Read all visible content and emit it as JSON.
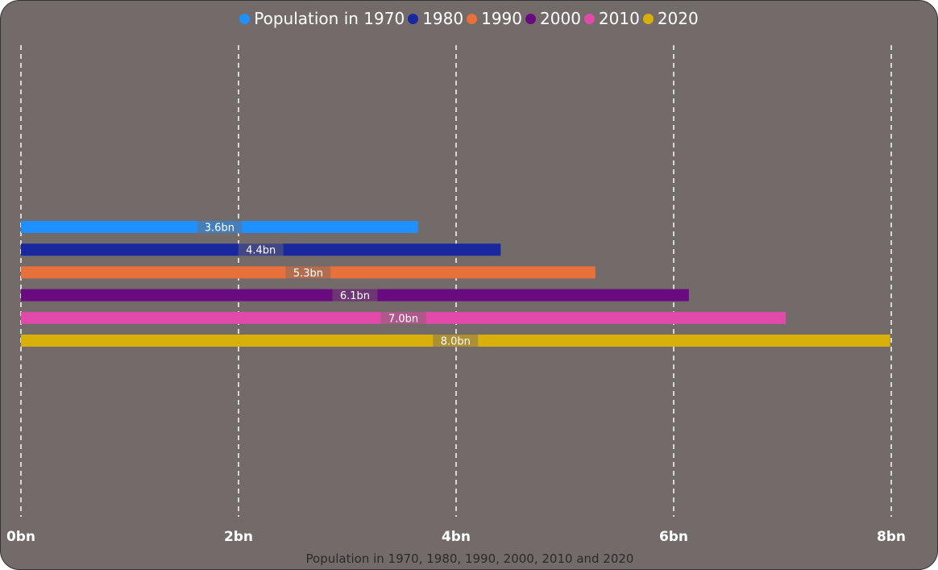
{
  "chart_data": {
    "type": "bar",
    "orientation": "horizontal",
    "categories": [
      "Population"
    ],
    "series": [
      {
        "name": "Population in 1970",
        "values": [
          3.65
        ],
        "label": "3.6bn",
        "color": "#1e90ff"
      },
      {
        "name": "1980",
        "values": [
          4.41
        ],
        "label": "4.4bn",
        "color": "#1a28a0"
      },
      {
        "name": "1990",
        "values": [
          5.28
        ],
        "label": "5.3bn",
        "color": "#e8703a"
      },
      {
        "name": "2000",
        "values": [
          6.14
        ],
        "label": "6.1bn",
        "color": "#6a0a80"
      },
      {
        "name": "2010",
        "values": [
          7.03
        ],
        "label": "7.0bn",
        "color": "#e04aa8"
      },
      {
        "name": "2020",
        "values": [
          7.99
        ],
        "label": "8.0bn",
        "color": "#d9b00a"
      }
    ],
    "xticks": [
      "0bn",
      "2bn",
      "4bn",
      "6bn",
      "8bn"
    ],
    "xlim": [
      0,
      8
    ],
    "xlabel": "Population in 1970, 1980, 1990, 2000, 2010 and 2020",
    "grid": true,
    "legend_position": "top-center"
  }
}
